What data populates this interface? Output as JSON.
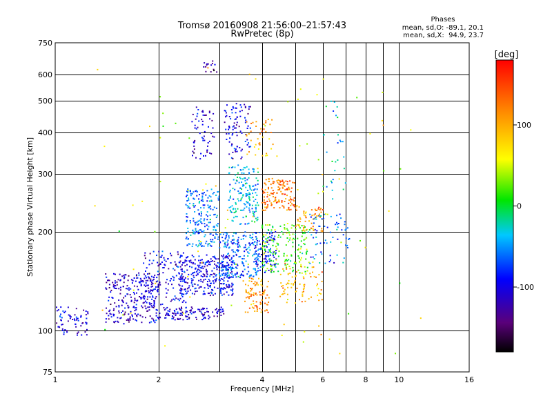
{
  "chart_data": {
    "type": "scatter",
    "title": "Tromsø 20160908 21:56:00–21:57:43",
    "subtitle": "RwPretec (8p)",
    "xlabel": "Frequency [MHz]",
    "ylabel": "Stationary phase Virtual Height [km]",
    "x_scale": "log",
    "y_scale": "log",
    "xlim": [
      1,
      16
    ],
    "ylim": [
      75,
      750
    ],
    "x_ticks": [
      1,
      2,
      4,
      6,
      8,
      10,
      16
    ],
    "x_minor_gridlines": [
      3,
      5,
      7,
      9
    ],
    "y_ticks": [
      75,
      100,
      200,
      300,
      400,
      500,
      600,
      750
    ],
    "grid": true,
    "stats": {
      "heading": "Phases",
      "line_o": "mean, sd,O: -89.1, 20.1",
      "line_x": "mean, sd,X:  94.9, 23.7"
    },
    "colorbar": {
      "label": "[deg]",
      "min": -180,
      "max": 180,
      "ticks": [
        100,
        0,
        -100
      ],
      "colormap": "rainbow (black-purple-blue-cyan-green-yellow-orange-red)"
    },
    "clusters": [
      {
        "f0": 1.0,
        "f1": 1.25,
        "h0": 97,
        "h1": 118,
        "phase": -105,
        "n": 70
      },
      {
        "f0": 1.4,
        "f1": 2.0,
        "h0": 105,
        "h1": 150,
        "phase": -110,
        "n": 260
      },
      {
        "f0": 1.8,
        "f1": 2.4,
        "h0": 120,
        "h1": 175,
        "phase": -100,
        "n": 140
      },
      {
        "f0": 2.0,
        "f1": 3.1,
        "h0": 108,
        "h1": 118,
        "phase": -110,
        "n": 120
      },
      {
        "f0": 2.3,
        "f1": 3.3,
        "h0": 128,
        "h1": 170,
        "phase": -95,
        "n": 320
      },
      {
        "f0": 2.4,
        "f1": 3.0,
        "h0": 180,
        "h1": 270,
        "phase": -60,
        "n": 200
      },
      {
        "f0": 2.5,
        "f1": 2.9,
        "h0": 330,
        "h1": 480,
        "phase": -110,
        "n": 60
      },
      {
        "f0": 2.7,
        "f1": 2.95,
        "h0": 600,
        "h1": 660,
        "phase": -120,
        "n": 15
      },
      {
        "f0": 3.0,
        "f1": 3.9,
        "h0": 145,
        "h1": 200,
        "phase": -60,
        "n": 200
      },
      {
        "f0": 3.2,
        "f1": 3.9,
        "h0": 210,
        "h1": 320,
        "phase": -40,
        "n": 170
      },
      {
        "f0": 3.1,
        "f1": 3.7,
        "h0": 330,
        "h1": 500,
        "phase": -100,
        "n": 90
      },
      {
        "f0": 3.5,
        "f1": 4.2,
        "h0": 112,
        "h1": 145,
        "phase": 110,
        "n": 90
      },
      {
        "f0": 3.6,
        "f1": 4.3,
        "h0": 340,
        "h1": 440,
        "phase": 100,
        "n": 40
      },
      {
        "f0": 3.8,
        "f1": 4.4,
        "h0": 150,
        "h1": 200,
        "phase": -85,
        "n": 100
      },
      {
        "f0": 4.0,
        "f1": 5.0,
        "h0": 230,
        "h1": 290,
        "phase": 125,
        "n": 140
      },
      {
        "f0": 4.0,
        "f1": 5.5,
        "h0": 150,
        "h1": 210,
        "phase": 20,
        "n": 170
      },
      {
        "f0": 4.5,
        "f1": 6.0,
        "h0": 120,
        "h1": 160,
        "phase": 95,
        "n": 80
      },
      {
        "f0": 5.0,
        "f1": 6.0,
        "h0": 200,
        "h1": 240,
        "phase": 110,
        "n": 60
      },
      {
        "f0": 5.5,
        "f1": 7.2,
        "h0": 160,
        "h1": 230,
        "phase": -70,
        "n": 70
      },
      {
        "f0": 6.0,
        "f1": 7.0,
        "h0": 250,
        "h1": 520,
        "phase": -30,
        "n": 30
      },
      {
        "f0": 1.3,
        "f1": 12.0,
        "h0": 80,
        "h1": 640,
        "phase": 60,
        "n": 90
      }
    ]
  }
}
